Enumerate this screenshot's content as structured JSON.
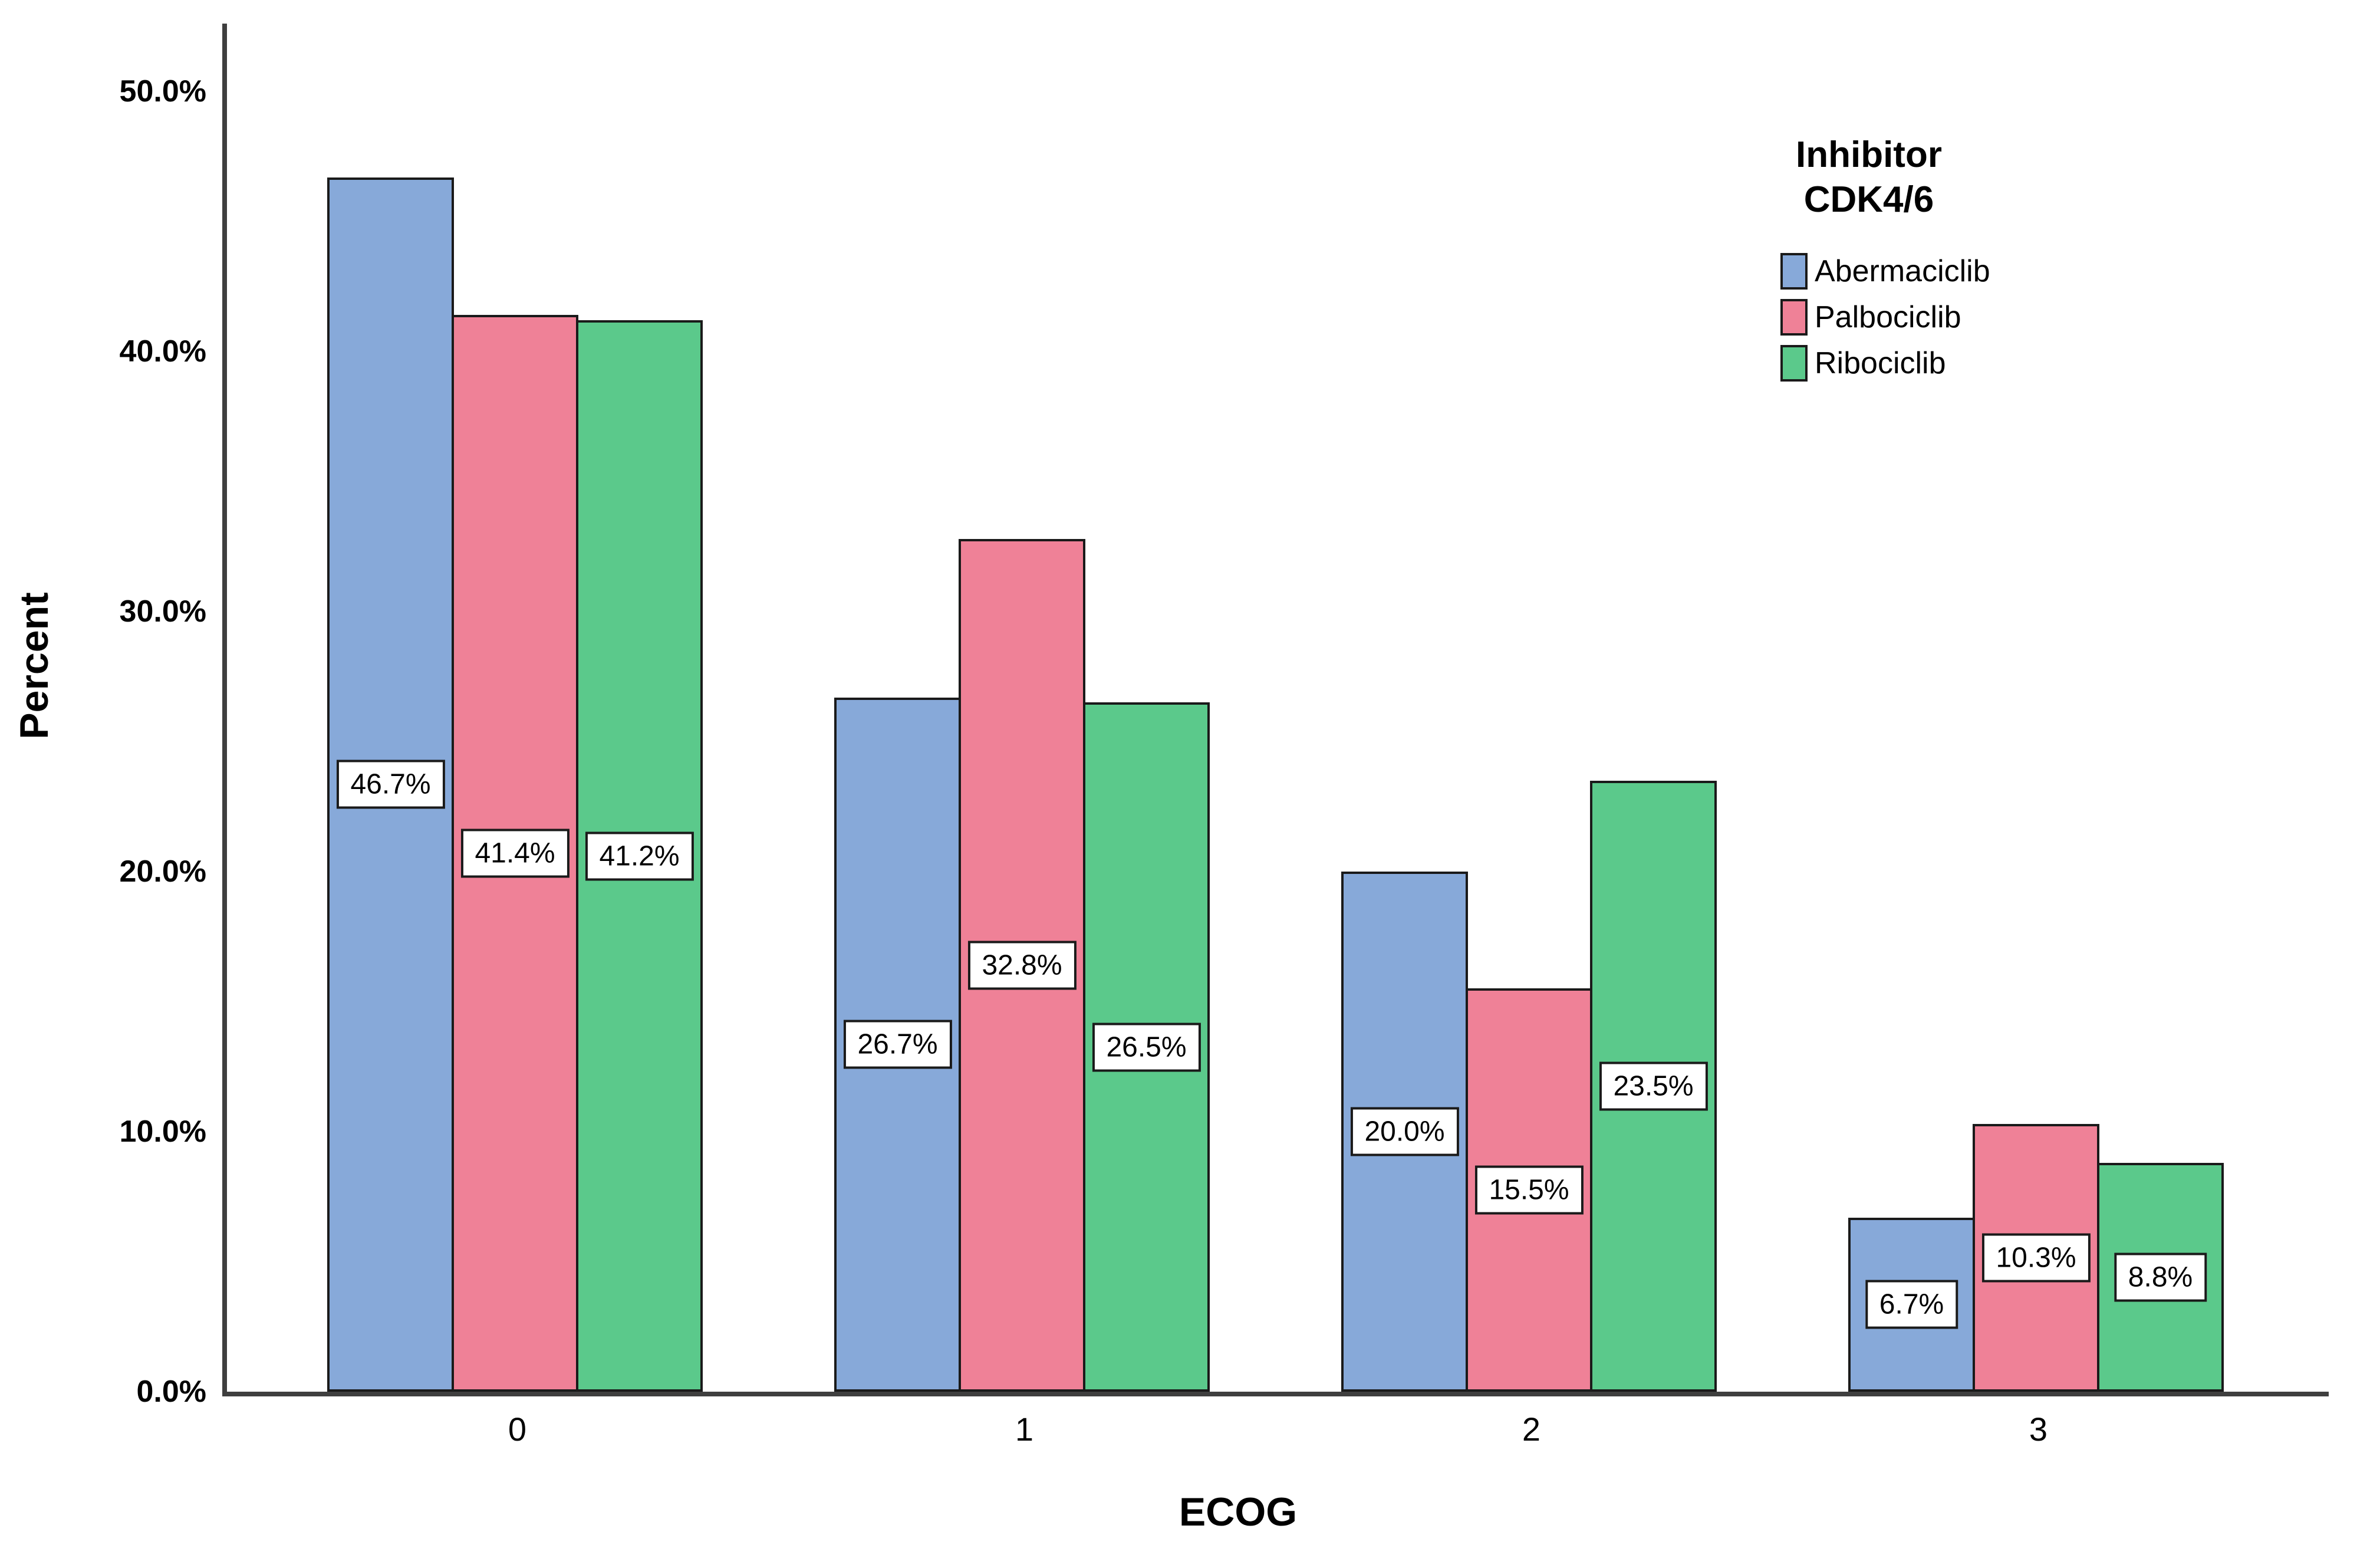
{
  "chart_data": {
    "type": "bar",
    "title": "",
    "xlabel": "ECOG",
    "ylabel": "Percent",
    "categories": [
      "0",
      "1",
      "2",
      "3"
    ],
    "series": [
      {
        "name": "Abermaciclib",
        "color": "#87A9D9",
        "values": [
          46.7,
          26.7,
          20.0,
          6.7
        ],
        "data_labels": [
          "46.7%",
          "26.7%",
          "20.0%",
          "6.7%"
        ]
      },
      {
        "name": "Palbociclib",
        "color": "#EF8197",
        "values": [
          41.4,
          32.8,
          15.5,
          10.3
        ],
        "data_labels": [
          "41.4%",
          "32.8%",
          "15.5%",
          "10.3%"
        ]
      },
      {
        "name": "Ribociclib",
        "color": "#5BC98B",
        "values": [
          41.2,
          26.5,
          23.5,
          8.8
        ],
        "data_labels": [
          "41.2%",
          "26.5%",
          "23.5%",
          "8.8%"
        ]
      }
    ],
    "ylim": [
      0,
      50
    ],
    "ytick_values": [
      0,
      10,
      20,
      30,
      40,
      50
    ],
    "ytick_labels": [
      "0.0%",
      "10.0%",
      "20.0%",
      "30.0%",
      "40.0%",
      "50.0%"
    ],
    "grid": false,
    "bar_label_style": "boxed-white-at-bar-midheight",
    "legend": {
      "position": "top-right",
      "title_line1": "Inhibitor",
      "title_line2": "CDK4/6"
    },
    "colors": {
      "bar_border": "#1a1a1a",
      "axis_line": "#3f3f3f",
      "label_box_bg": "#ffffff",
      "label_box_border": "#1a1a1a",
      "text": "#000000",
      "background": "#ffffff"
    }
  }
}
